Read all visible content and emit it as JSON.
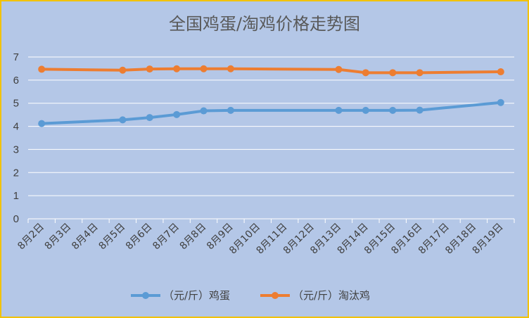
{
  "chart_data": {
    "type": "line",
    "title": "全国鸡蛋/淘鸡价格走势图",
    "xlabel": "",
    "ylabel": "",
    "ylim": [
      0,
      7
    ],
    "yticks": [
      0,
      1,
      2,
      3,
      4,
      5,
      6,
      7
    ],
    "grid": true,
    "legend_position": "bottom",
    "categories": [
      "8月2日",
      "8月3日",
      "8月4日",
      "8月5日",
      "8月6日",
      "8月7日",
      "8月8日",
      "8月9日",
      "8月10日",
      "8月11日",
      "8月12日",
      "8月13日",
      "8月14日",
      "8月15日",
      "8月16日",
      "8月17日",
      "8月18日",
      "8月19日"
    ],
    "series": [
      {
        "name": "（元/斤）鸡蛋",
        "color": "#5b9bd5",
        "values": [
          4.12,
          null,
          null,
          4.28,
          4.38,
          4.51,
          4.67,
          4.69,
          null,
          null,
          null,
          4.69,
          4.69,
          4.69,
          4.7,
          null,
          null,
          5.03
        ]
      },
      {
        "name": "（元/斤）淘汰鸡",
        "color": "#ed7d31",
        "values": [
          6.47,
          null,
          null,
          6.43,
          6.48,
          6.49,
          6.49,
          6.49,
          null,
          null,
          null,
          6.46,
          6.32,
          6.32,
          6.32,
          null,
          null,
          6.36
        ]
      }
    ]
  },
  "colors": {
    "background": "#b4c7e7",
    "border": "#f2c200",
    "gridline": "#ffffff"
  }
}
